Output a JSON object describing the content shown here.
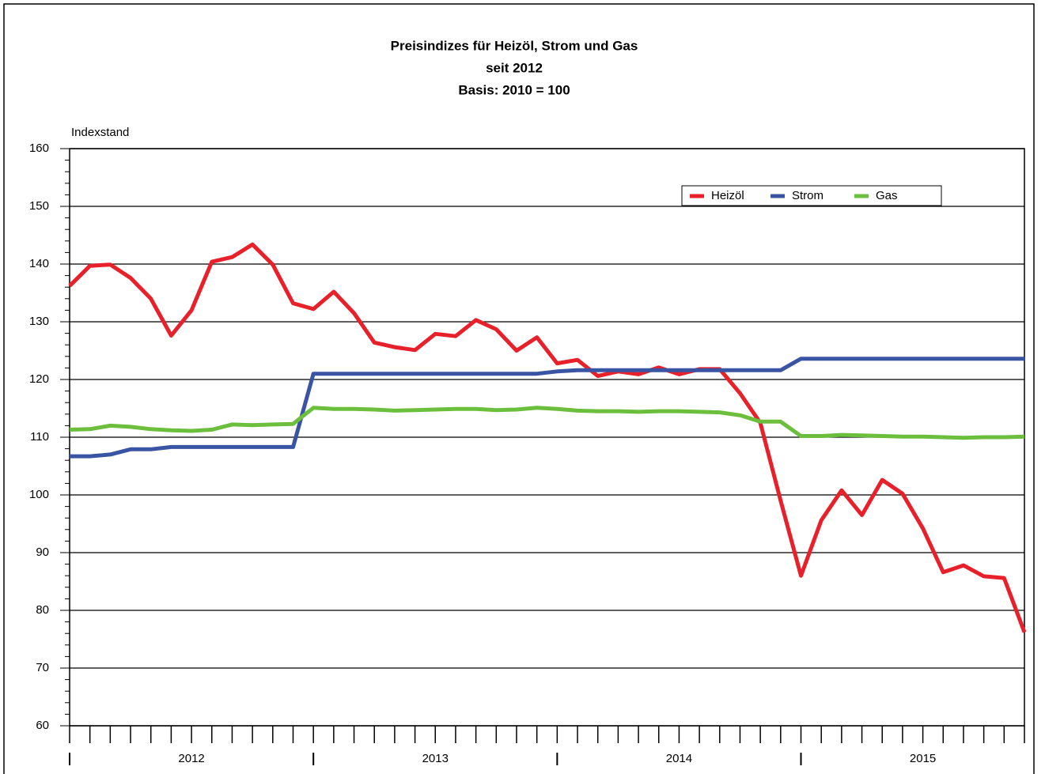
{
  "chart_data": {
    "type": "line",
    "title": "Preisindizes für Heizöl, Strom und Gas",
    "subtitle": [
      "seit 2012",
      "Basis: 2010 = 100"
    ],
    "y_label": "Indexstand",
    "categories": [
      null,
      null,
      null,
      null,
      null,
      null,
      "2012",
      null,
      null,
      null,
      null,
      null,
      null,
      null,
      null,
      null,
      null,
      null,
      "2013",
      null,
      null,
      null,
      null,
      null,
      null,
      null,
      null,
      null,
      null,
      null,
      "2014",
      null,
      null,
      null,
      null,
      null,
      null,
      null,
      null,
      null,
      null,
      null,
      "2015",
      null,
      null,
      null,
      null,
      null
    ],
    "series": [
      {
        "name": "Heizöl",
        "color": "#e8202a",
        "values": [
          136.2,
          139.7,
          139.9,
          137.6,
          134,
          127.6,
          132,
          140.4,
          141.2,
          143.4,
          139.9,
          133.2,
          132.2,
          135.2,
          131.5,
          126.4,
          125.6,
          125.1,
          127.9,
          127.5,
          130.3,
          128.7,
          125,
          127.3,
          122.8,
          123.4,
          120.6,
          121.4,
          120.9,
          122.1,
          120.9,
          121.8,
          121.8,
          117.6,
          112.5,
          99,
          86,
          95.6,
          100.8,
          96.5,
          102.6,
          100.2,
          94.2,
          86.6,
          87.8,
          85.9,
          85.6,
          76.2
        ]
      },
      {
        "name": "Strom",
        "color": "#3a54a4",
        "values": [
          106.7,
          106.7,
          107,
          107.9,
          107.9,
          108.3,
          108.3,
          108.3,
          108.3,
          108.3,
          108.3,
          108.3,
          121,
          121,
          121,
          121,
          121,
          121,
          121,
          121,
          121,
          121,
          121,
          121,
          121.4,
          121.6,
          121.6,
          121.6,
          121.6,
          121.6,
          121.6,
          121.6,
          121.6,
          121.6,
          121.6,
          121.6,
          123.6,
          123.6,
          123.6,
          123.6,
          123.6,
          123.6,
          123.6,
          123.6,
          123.6,
          123.6,
          123.6,
          123.6
        ]
      },
      {
        "name": "Gas",
        "color": "#6cbf3c",
        "values": [
          111.3,
          111.4,
          112,
          111.8,
          111.4,
          111.2,
          111.1,
          111.3,
          112.2,
          112.1,
          112.2,
          112.3,
          115.1,
          114.9,
          114.9,
          114.8,
          114.6,
          114.7,
          114.8,
          114.9,
          114.9,
          114.7,
          114.8,
          115.1,
          114.9,
          114.6,
          114.5,
          114.5,
          114.4,
          114.5,
          114.5,
          114.4,
          114.3,
          113.8,
          112.7,
          112.7,
          110.2,
          110.2,
          110.4,
          110.3,
          110.2,
          110.1,
          110.1,
          110,
          109.9,
          110,
          110,
          110.1
        ]
      }
    ],
    "ylim": [
      60,
      160
    ],
    "yticks": [
      60,
      70,
      80,
      90,
      100,
      110,
      120,
      130,
      140,
      150,
      160
    ],
    "grid": true,
    "legend": "top-right"
  }
}
